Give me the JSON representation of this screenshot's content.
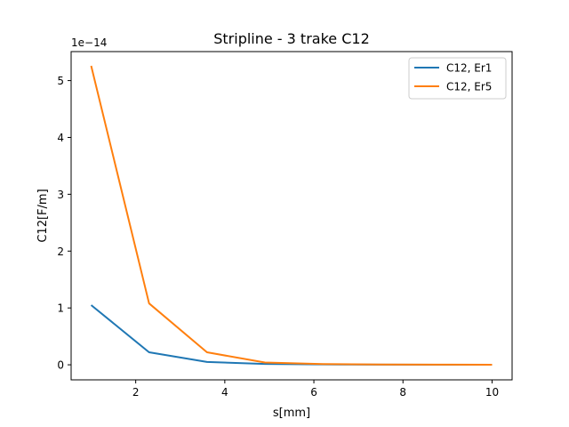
{
  "chart_data": {
    "type": "line",
    "title": "Stripline - 3 trake C12",
    "xlabel": "s[mm]",
    "ylabel": "C12[F/m]",
    "offset_label": "1e−14",
    "xlim": [
      0.55,
      10.45
    ],
    "ylim": [
      -0.265,
      5.51
    ],
    "xticks": [
      2,
      4,
      6,
      8,
      10
    ],
    "xtick_labels": [
      "2",
      "4",
      "6",
      "8",
      "10"
    ],
    "yticks": [
      0,
      1,
      2,
      3,
      4,
      5
    ],
    "ytick_labels": [
      "0",
      "1",
      "2",
      "3",
      "4",
      "5"
    ],
    "grid": false,
    "legend_position": "top-right",
    "x": [
      1.0,
      2.3,
      3.6,
      4.9,
      6.2,
      7.5,
      8.8,
      10.0
    ],
    "series": [
      {
        "name": "C12, Er1",
        "color": "#1f77b4",
        "values": [
          1.05,
          0.22,
          0.05,
          0.015,
          0.006,
          0.003,
          0.002,
          0.001
        ]
      },
      {
        "name": "C12, Er5",
        "color": "#ff7f0e",
        "values": [
          5.26,
          1.08,
          0.22,
          0.04,
          0.012,
          0.005,
          0.003,
          0.002
        ]
      }
    ]
  }
}
